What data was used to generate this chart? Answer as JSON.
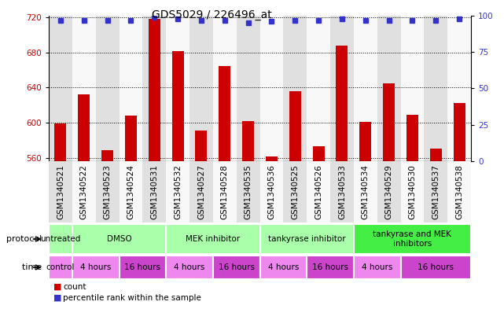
{
  "title": "GDS5029 / 226496_at",
  "samples": [
    "GSM1340521",
    "GSM1340522",
    "GSM1340523",
    "GSM1340524",
    "GSM1340531",
    "GSM1340532",
    "GSM1340527",
    "GSM1340528",
    "GSM1340535",
    "GSM1340536",
    "GSM1340525",
    "GSM1340526",
    "GSM1340533",
    "GSM1340534",
    "GSM1340529",
    "GSM1340530",
    "GSM1340537",
    "GSM1340538"
  ],
  "counts": [
    599,
    632,
    569,
    608,
    718,
    682,
    591,
    665,
    602,
    561,
    636,
    573,
    688,
    601,
    645,
    609,
    570,
    622
  ],
  "percentiles": [
    97,
    97,
    97,
    97,
    99,
    98,
    97,
    97,
    95,
    96,
    97,
    97,
    98,
    97,
    97,
    97,
    97,
    98
  ],
  "ylim_left": [
    556,
    722
  ],
  "ylim_right": [
    0,
    100
  ],
  "yticks_left": [
    560,
    600,
    640,
    680,
    720
  ],
  "yticks_right": [
    0,
    25,
    50,
    75,
    100
  ],
  "bar_color": "#cc0000",
  "dot_color": "#3333cc",
  "col_bg_odd": "#e0e0e0",
  "col_bg_even": "#f8f8f8",
  "protocol_groups": [
    {
      "label": "untreated",
      "start": 0,
      "end": 1,
      "color": "#aaffaa"
    },
    {
      "label": "DMSO",
      "start": 1,
      "end": 5,
      "color": "#aaffaa"
    },
    {
      "label": "MEK inhibitor",
      "start": 5,
      "end": 9,
      "color": "#aaffaa"
    },
    {
      "label": "tankyrase inhibitor",
      "start": 9,
      "end": 13,
      "color": "#aaffaa"
    },
    {
      "label": "tankyrase and MEK\ninhibitors",
      "start": 13,
      "end": 18,
      "color": "#44ee44"
    }
  ],
  "time_groups": [
    {
      "label": "control",
      "start": 0,
      "end": 1,
      "color": "#ee88ee"
    },
    {
      "label": "4 hours",
      "start": 1,
      "end": 3,
      "color": "#ee88ee"
    },
    {
      "label": "16 hours",
      "start": 3,
      "end": 5,
      "color": "#cc44cc"
    },
    {
      "label": "4 hours",
      "start": 5,
      "end": 7,
      "color": "#ee88ee"
    },
    {
      "label": "16 hours",
      "start": 7,
      "end": 9,
      "color": "#cc44cc"
    },
    {
      "label": "4 hours",
      "start": 9,
      "end": 11,
      "color": "#ee88ee"
    },
    {
      "label": "16 hours",
      "start": 11,
      "end": 13,
      "color": "#cc44cc"
    },
    {
      "label": "4 hours",
      "start": 13,
      "end": 15,
      "color": "#ee88ee"
    },
    {
      "label": "16 hours",
      "start": 15,
      "end": 18,
      "color": "#cc44cc"
    }
  ],
  "legend_count_color": "#cc0000",
  "legend_dot_color": "#3333cc",
  "title_fontsize": 10,
  "tick_fontsize": 7.5,
  "label_fontsize": 7.5,
  "row_label_fontsize": 8
}
